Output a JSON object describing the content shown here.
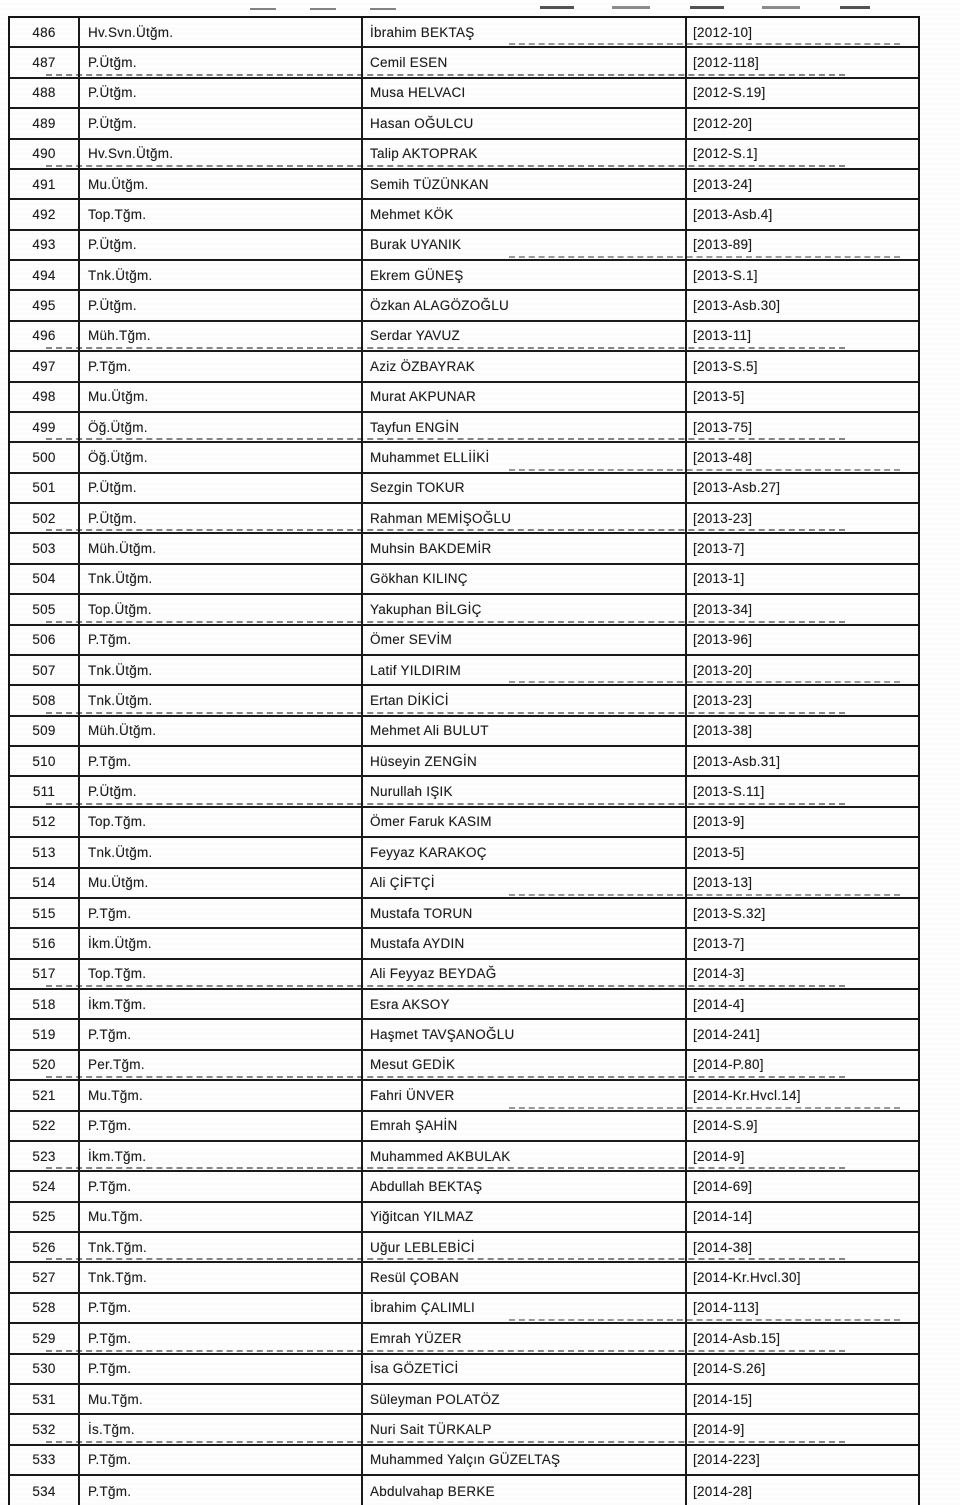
{
  "table": {
    "rows": [
      {
        "no": "486",
        "rank": "Hv.Svn.Ütğm.",
        "name": "İbrahim BEKTAŞ",
        "code": "[2012-10]"
      },
      {
        "no": "487",
        "rank": "P.Ütğm.",
        "name": "Cemil ESEN",
        "code": "[2012-118]"
      },
      {
        "no": "488",
        "rank": "P.Ütğm.",
        "name": "Musa HELVACI",
        "code": "[2012-S.19]"
      },
      {
        "no": "489",
        "rank": "P.Ütğm.",
        "name": "Hasan OĞULCU",
        "code": "[2012-20]"
      },
      {
        "no": "490",
        "rank": "Hv.Svn.Ütğm.",
        "name": "Talip AKTOPRAK",
        "code": "[2012-S.1]"
      },
      {
        "no": "491",
        "rank": "Mu.Ütğm.",
        "name": "Semih TÜZÜNKAN",
        "code": "[2013-24]"
      },
      {
        "no": "492",
        "rank": "Top.Tğm.",
        "name": "Mehmet KÖK",
        "code": "[2013-Asb.4]"
      },
      {
        "no": "493",
        "rank": "P.Ütğm.",
        "name": "Burak UYANIK",
        "code": "[2013-89]"
      },
      {
        "no": "494",
        "rank": "Tnk.Ütğm.",
        "name": "Ekrem GÜNEŞ",
        "code": "[2013-S.1]"
      },
      {
        "no": "495",
        "rank": "P.Ütğm.",
        "name": "Özkan ALAGÖZOĞLU",
        "code": "[2013-Asb.30]"
      },
      {
        "no": "496",
        "rank": "Müh.Tğm.",
        "name": "Serdar YAVUZ",
        "code": "[2013-11]"
      },
      {
        "no": "497",
        "rank": "P.Tğm.",
        "name": "Aziz ÖZBAYRAK",
        "code": "[2013-S.5]"
      },
      {
        "no": "498",
        "rank": "Mu.Ütğm.",
        "name": "Murat AKPUNAR",
        "code": "[2013-5]"
      },
      {
        "no": "499",
        "rank": "Öğ.Ütğm.",
        "name": "Tayfun ENGİN",
        "code": "[2013-75]"
      },
      {
        "no": "500",
        "rank": "Öğ.Ütğm.",
        "name": "Muhammet ELLİİKİ",
        "code": "[2013-48]"
      },
      {
        "no": "501",
        "rank": "P.Ütğm.",
        "name": "Sezgin TOKUR",
        "code": "[2013-Asb.27]"
      },
      {
        "no": "502",
        "rank": "P.Ütğm.",
        "name": "Rahman MEMİŞOĞLU",
        "code": "[2013-23]"
      },
      {
        "no": "503",
        "rank": "Müh.Ütğm.",
        "name": "Muhsin BAKDEMİR",
        "code": "[2013-7]"
      },
      {
        "no": "504",
        "rank": "Tnk.Ütğm.",
        "name": "Gökhan KILINÇ",
        "code": "[2013-1]"
      },
      {
        "no": "505",
        "rank": "Top.Ütğm.",
        "name": "Yakuphan BİLGİÇ",
        "code": "[2013-34]"
      },
      {
        "no": "506",
        "rank": "P.Tğm.",
        "name": "Ömer SEVİM",
        "code": "[2013-96]"
      },
      {
        "no": "507",
        "rank": "Tnk.Ütğm.",
        "name": "Latif YILDIRIM",
        "code": "[2013-20]"
      },
      {
        "no": "508",
        "rank": "Tnk.Ütğm.",
        "name": "Ertan DİKİCİ",
        "code": "[2013-23]"
      },
      {
        "no": "509",
        "rank": "Müh.Ütğm.",
        "name": "Mehmet Ali BULUT",
        "code": "[2013-38]"
      },
      {
        "no": "510",
        "rank": "P.Tğm.",
        "name": "Hüseyin ZENGİN",
        "code": "[2013-Asb.31]"
      },
      {
        "no": "511",
        "rank": "P.Ütğm.",
        "name": "Nurullah IŞIK",
        "code": "[2013-S.11]"
      },
      {
        "no": "512",
        "rank": "Top.Tğm.",
        "name": "Ömer Faruk KASIM",
        "code": "[2013-9]"
      },
      {
        "no": "513",
        "rank": "Tnk.Ütğm.",
        "name": "Feyyaz KARAKOÇ",
        "code": "[2013-5]"
      },
      {
        "no": "514",
        "rank": "Mu.Ütğm.",
        "name": "Ali ÇİFTÇİ",
        "code": "[2013-13]"
      },
      {
        "no": "515",
        "rank": "P.Tğm.",
        "name": "Mustafa TORUN",
        "code": "[2013-S.32]"
      },
      {
        "no": "516",
        "rank": "İkm.Ütğm.",
        "name": "Mustafa AYDIN",
        "code": "[2013-7]"
      },
      {
        "no": "517",
        "rank": "Top.Tğm.",
        "name": "Ali Feyyaz BEYDAĞ",
        "code": "[2014-3]"
      },
      {
        "no": "518",
        "rank": "İkm.Tğm.",
        "name": "Esra AKSOY",
        "code": "[2014-4]"
      },
      {
        "no": "519",
        "rank": "P.Tğm.",
        "name": "Haşmet TAVŞANOĞLU",
        "code": "[2014-241]"
      },
      {
        "no": "520",
        "rank": "Per.Tğm.",
        "name": "Mesut GEDİK",
        "code": "[2014-P.80]"
      },
      {
        "no": "521",
        "rank": "Mu.Tğm.",
        "name": "Fahri ÜNVER",
        "code": "[2014-Kr.Hvcl.14]"
      },
      {
        "no": "522",
        "rank": "P.Tğm.",
        "name": "Emrah ŞAHİN",
        "code": "[2014-S.9]"
      },
      {
        "no": "523",
        "rank": "İkm.Tğm.",
        "name": "Muhammed AKBULAK",
        "code": "[2014-9]"
      },
      {
        "no": "524",
        "rank": "P.Tğm.",
        "name": "Abdullah BEKTAŞ",
        "code": "[2014-69]"
      },
      {
        "no": "525",
        "rank": "Mu.Tğm.",
        "name": "Yiğitcan YILMAZ",
        "code": "[2014-14]"
      },
      {
        "no": "526",
        "rank": "Tnk.Tğm.",
        "name": "Uğur LEBLEBİCİ",
        "code": "[2014-38]"
      },
      {
        "no": "527",
        "rank": "Tnk.Tğm.",
        "name": "Resül ÇOBAN",
        "code": "[2014-Kr.Hvcl.30]"
      },
      {
        "no": "528",
        "rank": "P.Tğm.",
        "name": "İbrahim ÇALIMLI",
        "code": "[2014-113]"
      },
      {
        "no": "529",
        "rank": "P.Tğm.",
        "name": "Emrah YÜZER",
        "code": "[2014-Asb.15]"
      },
      {
        "no": "530",
        "rank": "P.Tğm.",
        "name": "İsa GÖZETİCİ",
        "code": "[2014-S.26]"
      },
      {
        "no": "531",
        "rank": "Mu.Tğm.",
        "name": "Süleyman POLATÖZ",
        "code": "[2014-15]"
      },
      {
        "no": "532",
        "rank": "İs.Tğm.",
        "name": "Nuri Sait TÜRKALP",
        "code": "[2014-9]"
      },
      {
        "no": "533",
        "rank": "P.Tğm.",
        "name": "Muhammed Yalçın GÜZELTAŞ",
        "code": "[2014-223]"
      },
      {
        "no": "534",
        "rank": "P.Tğm.",
        "name": "Abdulvahap BERKE",
        "code": "[2014-28]"
      }
    ]
  },
  "colors": {
    "paper": "#fefefe",
    "ink": "#1d1d1d",
    "border": "#1a1a1a"
  }
}
